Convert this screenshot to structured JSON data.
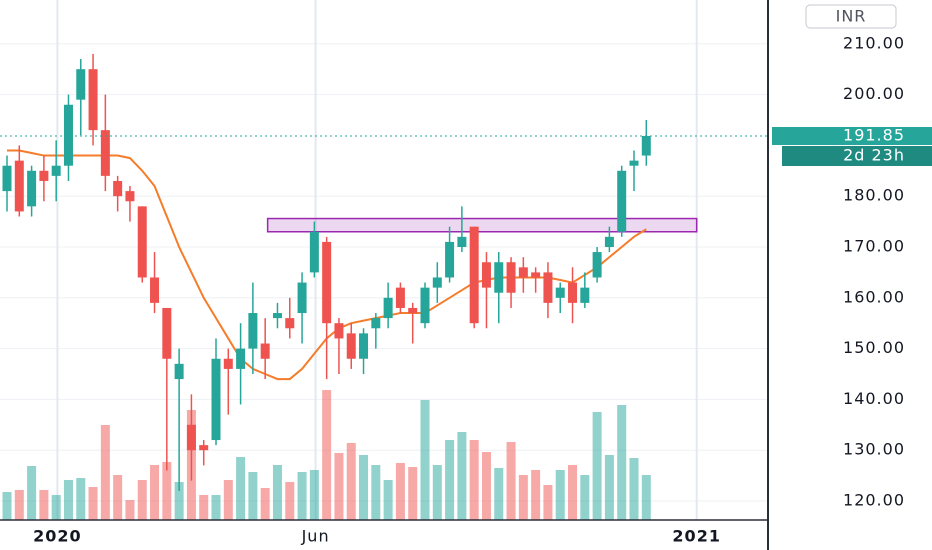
{
  "chart_data": {
    "type": "candlestick",
    "currency": "INR",
    "countdown": "2d 23h",
    "x": [
      0,
      1,
      2,
      3,
      4,
      5,
      6,
      7,
      8,
      9,
      10,
      11,
      12,
      13,
      14,
      15,
      16,
      17,
      18,
      19,
      20,
      21,
      22,
      23,
      24,
      25,
      26,
      27,
      28,
      29,
      30,
      31,
      32,
      33,
      34,
      35,
      36,
      37,
      38,
      39,
      40,
      41,
      42,
      43,
      44,
      45,
      46,
      47,
      48,
      49,
      50,
      51,
      52
    ],
    "open": [
      181,
      187,
      178,
      185,
      184,
      186,
      199,
      205,
      193,
      183,
      181,
      178,
      164,
      158,
      144,
      135,
      131,
      132,
      148,
      146,
      150,
      151,
      156,
      156,
      157,
      165,
      171,
      155,
      153,
      148,
      154,
      156,
      162,
      158,
      155,
      162,
      164,
      170,
      174,
      167,
      161,
      167,
      166,
      165,
      165,
      160,
      163,
      159,
      164,
      170,
      173,
      186,
      188
    ],
    "high": [
      188,
      190,
      186,
      188,
      191,
      200,
      207,
      208,
      200,
      184,
      182,
      178,
      169,
      158,
      150,
      141,
      132,
      152,
      150,
      155,
      163,
      156,
      159,
      160,
      165,
      175,
      172,
      156,
      155,
      154,
      157,
      163,
      163,
      159,
      163,
      167,
      174,
      178,
      174,
      169,
      169,
      168,
      168,
      166,
      167,
      163,
      166,
      165,
      170,
      174,
      186,
      189,
      195
    ],
    "low": [
      177,
      176,
      176,
      179,
      179,
      183,
      192,
      190,
      181,
      177,
      175,
      163,
      157,
      126,
      122,
      124,
      127,
      131,
      137,
      139,
      145,
      144,
      154,
      152,
      151,
      164,
      144,
      145,
      146,
      145,
      150,
      154,
      157,
      151,
      154,
      159,
      163,
      169,
      154,
      154,
      155,
      158,
      161,
      161,
      156,
      157,
      155,
      158,
      163,
      169,
      172,
      181,
      186
    ],
    "close": [
      186,
      177,
      185,
      183,
      186,
      198,
      205,
      193,
      184,
      180,
      179,
      164,
      159,
      148,
      147,
      130,
      130,
      148,
      146,
      150,
      157,
      148,
      157,
      154,
      163,
      173,
      155,
      152,
      148,
      153,
      156,
      160,
      158,
      157,
      162,
      164,
      171,
      172,
      155,
      162,
      167,
      161,
      164,
      164,
      159,
      162,
      159,
      162,
      169,
      172,
      185,
      187,
      191.85
    ],
    "volume": [
      28,
      30,
      54,
      30,
      25,
      40,
      42,
      33,
      95,
      45,
      20,
      40,
      55,
      58,
      38,
      110,
      25,
      25,
      40,
      63,
      48,
      32,
      55,
      38,
      48,
      50,
      130,
      67,
      77,
      65,
      55,
      40,
      57,
      53,
      120,
      55,
      80,
      88,
      80,
      68,
      52,
      78,
      45,
      50,
      35,
      50,
      55,
      45,
      108,
      65,
      115,
      62,
      45
    ],
    "ma": {
      "color": "#f57c2a",
      "values": [
        189,
        189,
        188.5,
        188,
        188,
        188,
        188,
        188,
        188,
        188,
        187.5,
        185,
        182,
        176,
        170,
        165,
        160,
        156,
        152,
        148,
        146,
        145,
        144,
        144,
        146,
        149,
        152,
        154,
        155,
        155.5,
        156,
        156.5,
        157,
        157,
        157,
        158.5,
        160,
        161.5,
        163,
        163.5,
        164,
        164,
        164,
        164,
        164,
        163.5,
        163,
        164.5,
        166,
        168,
        170,
        172,
        173.5
      ]
    },
    "zone": {
      "x": [
        21.2,
        56.1
      ],
      "y": [
        173,
        175.6
      ],
      "color": "#9c27b0"
    },
    "up_color": "#26a69a",
    "down_color": "#ef5350",
    "xlim": [
      -0.57,
      61.9
    ],
    "ylim": [
      116.26,
      218.62
    ],
    "xticks": [
      {
        "value": 4.1,
        "label": "2020"
      },
      {
        "value": 25.1,
        "label": "Jun"
      },
      {
        "value": 56.1,
        "label": "2021"
      }
    ],
    "yticks": [
      {
        "value": 120,
        "label": "120.00"
      },
      {
        "value": 130,
        "label": "130.00"
      },
      {
        "value": 140,
        "label": "140.00"
      },
      {
        "value": 150,
        "label": "150.00"
      },
      {
        "value": 160,
        "label": "160.00"
      },
      {
        "value": 170,
        "label": "170.00"
      },
      {
        "value": 180,
        "label": "180.00"
      },
      {
        "value": 200,
        "label": "200.00"
      },
      {
        "value": 210,
        "label": "210.00"
      }
    ],
    "grid": true
  }
}
